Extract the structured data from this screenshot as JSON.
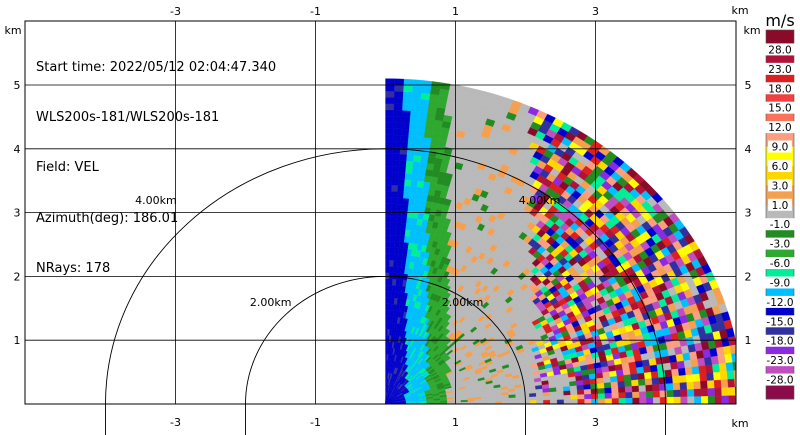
{
  "info": {
    "start_time": "Start time: 2022/05/12 02:04:47.340",
    "instrument": "WLS200s-181/WLS200s-181",
    "field": "Field: VEL",
    "azimuth": "Azimuth(deg): 186.01",
    "nrays": "NRays: 178"
  },
  "chart_data": {
    "type": "heatmap",
    "title": "",
    "xlabel": "km",
    "ylabel": "km",
    "x_unit": "km",
    "y_unit": "km",
    "xlim": [
      -5.2,
      5.2
    ],
    "ylim": [
      0,
      5.2
    ],
    "x_ticks": [
      -3,
      -1,
      1,
      3
    ],
    "y_ticks": [
      1,
      2,
      3,
      4,
      5
    ],
    "x_tick_labels": [
      "-3",
      "-1",
      "1",
      "3"
    ],
    "y_tick_labels": [
      "1",
      "2",
      "3",
      "4",
      "5"
    ],
    "grid": true,
    "sector_deg": [
      0,
      90
    ],
    "max_range_km": 5.1,
    "range_rings": [
      {
        "radius_km": 2.0,
        "label": "2.00km"
      },
      {
        "radius_km": 4.0,
        "label": "4.00km"
      }
    ],
    "colorbar": {
      "unit": "m/s",
      "labels": [
        "28.0",
        "23.0",
        "18.0",
        "15.0",
        "12.0",
        "9.0",
        "6.0",
        "3.0",
        "1.0",
        "-1.0",
        "-3.0",
        "-6.0",
        "-9.0",
        "-12.0",
        "-15.0",
        "-18.0",
        "-23.0",
        "-28.0"
      ],
      "colors": [
        "#8b0a2a",
        "#b0123a",
        "#dc1f1f",
        "#f04040",
        "#f8735a",
        "#fb9f80",
        "#ffff00",
        "#ffd700",
        "#f4a050",
        "#b9b9b9",
        "#228b22",
        "#2fa82f",
        "#00ee99",
        "#00bfff",
        "#0000cd",
        "#3030a0",
        "#8a2be2",
        "#c04ec0",
        "#8b0a4a"
      ]
    },
    "layers": [
      {
        "range_km": [
          0.0,
          0.3
        ],
        "value": "-12.0"
      },
      {
        "range_km": [
          0.3,
          0.6
        ],
        "value": "-9.0"
      },
      {
        "range_km": [
          0.6,
          0.9
        ],
        "value": "-3.0"
      },
      {
        "range_km": [
          0.9,
          2.1
        ],
        "value": "1.0"
      },
      {
        "range_km": [
          2.1,
          5.1
        ],
        "value": "noise"
      }
    ]
  }
}
